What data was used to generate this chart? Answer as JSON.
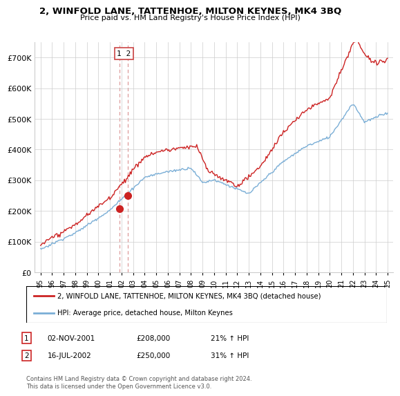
{
  "title": "2, WINFOLD LANE, TATTENHOE, MILTON KEYNES, MK4 3BQ",
  "subtitle": "Price paid vs. HM Land Registry's House Price Index (HPI)",
  "legend_line1": "2, WINFOLD LANE, TATTENHOE, MILTON KEYNES, MK4 3BQ (detached house)",
  "legend_line2": "HPI: Average price, detached house, Milton Keynes",
  "transaction1_date": "02-NOV-2001",
  "transaction1_price": "£208,000",
  "transaction1_hpi": "21% ↑ HPI",
  "transaction2_date": "16-JUL-2002",
  "transaction2_price": "£250,000",
  "transaction2_hpi": "31% ↑ HPI",
  "footer": "Contains HM Land Registry data © Crown copyright and database right 2024.\nThis data is licensed under the Open Government Licence v3.0.",
  "red_color": "#cc2222",
  "blue_color": "#7aaed6",
  "dashed_color": "#dd9999",
  "ylim": [
    0,
    750000
  ],
  "yticks": [
    0,
    100000,
    200000,
    300000,
    400000,
    500000,
    600000,
    700000
  ],
  "ytick_labels": [
    "£0",
    "£100K",
    "£200K",
    "£300K",
    "£400K",
    "£500K",
    "£600K",
    "£700K"
  ],
  "t1_x": 2001.84,
  "t1_y": 208000,
  "t2_x": 2002.54,
  "t2_y": 250000,
  "xmin": 1994.5,
  "xmax": 2025.5
}
